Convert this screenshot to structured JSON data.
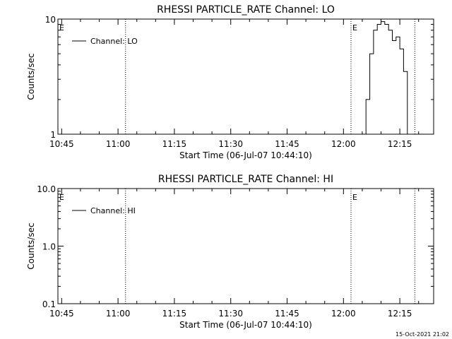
{
  "chart_data": [
    {
      "type": "line",
      "title": "RHESSI PARTICLE_RATE Channel: LO",
      "xlabel": "Start Time (06-Jul-07 10:44:10)",
      "ylabel": "Counts/sec",
      "yscale": "log",
      "xlim": [
        "10:44",
        "12:24"
      ],
      "ylim": [
        1,
        10
      ],
      "x_ticks": [
        "10:45",
        "11:00",
        "11:15",
        "11:30",
        "11:45",
        "12:00",
        "12:15"
      ],
      "y_ticks": [
        "1",
        "10"
      ],
      "legend": {
        "placement": "top-left",
        "entries": [
          "Channel: LO"
        ]
      },
      "markers": [
        {
          "time": "10:44",
          "label": "E"
        },
        {
          "time": "11:02",
          "label": ""
        },
        {
          "time": "12:02",
          "label": "E"
        },
        {
          "time": "12:19",
          "label": ""
        }
      ],
      "series": [
        {
          "name": "Channel: LO",
          "x": [
            "12:06",
            "12:06",
            "12:07",
            "12:07",
            "12:08",
            "12:08",
            "12:09",
            "12:09",
            "12:10",
            "12:10",
            "12:11",
            "12:11",
            "12:12",
            "12:12",
            "12:13",
            "12:13",
            "12:14",
            "12:14",
            "12:15",
            "12:15",
            "12:16",
            "12:16",
            "12:17",
            "12:17"
          ],
          "y": [
            1.0,
            2.0,
            2.0,
            5.0,
            5.0,
            8.0,
            8.0,
            9.0,
            9.0,
            9.5,
            9.5,
            9.0,
            9.0,
            8.0,
            8.0,
            6.5,
            6.5,
            7.0,
            7.0,
            5.5,
            5.5,
            3.5,
            3.5,
            1.0
          ]
        }
      ]
    },
    {
      "type": "line",
      "title": "RHESSI PARTICLE_RATE Channel: HI",
      "xlabel": "Start Time (06-Jul-07 10:44:10)",
      "ylabel": "Counts/sec",
      "yscale": "log",
      "xlim": [
        "10:44",
        "12:24"
      ],
      "ylim": [
        0.1,
        10
      ],
      "x_ticks": [
        "10:45",
        "11:00",
        "11:15",
        "11:30",
        "11:45",
        "12:00",
        "12:15"
      ],
      "y_ticks": [
        "0.1",
        "1.0",
        "10.0"
      ],
      "legend": {
        "placement": "top-left",
        "entries": [
          "Channel: HI"
        ]
      },
      "markers": [
        {
          "time": "10:44",
          "label": "E"
        },
        {
          "time": "11:02",
          "label": ""
        },
        {
          "time": "12:02",
          "label": "E"
        },
        {
          "time": "12:19",
          "label": ""
        }
      ],
      "series": [
        {
          "name": "Channel: HI",
          "x": [],
          "y": []
        }
      ]
    }
  ],
  "footer": {
    "timestamp": "15-Oct-2021 21:02"
  },
  "colors": {
    "line": "#000000",
    "background": "#ffffff"
  }
}
